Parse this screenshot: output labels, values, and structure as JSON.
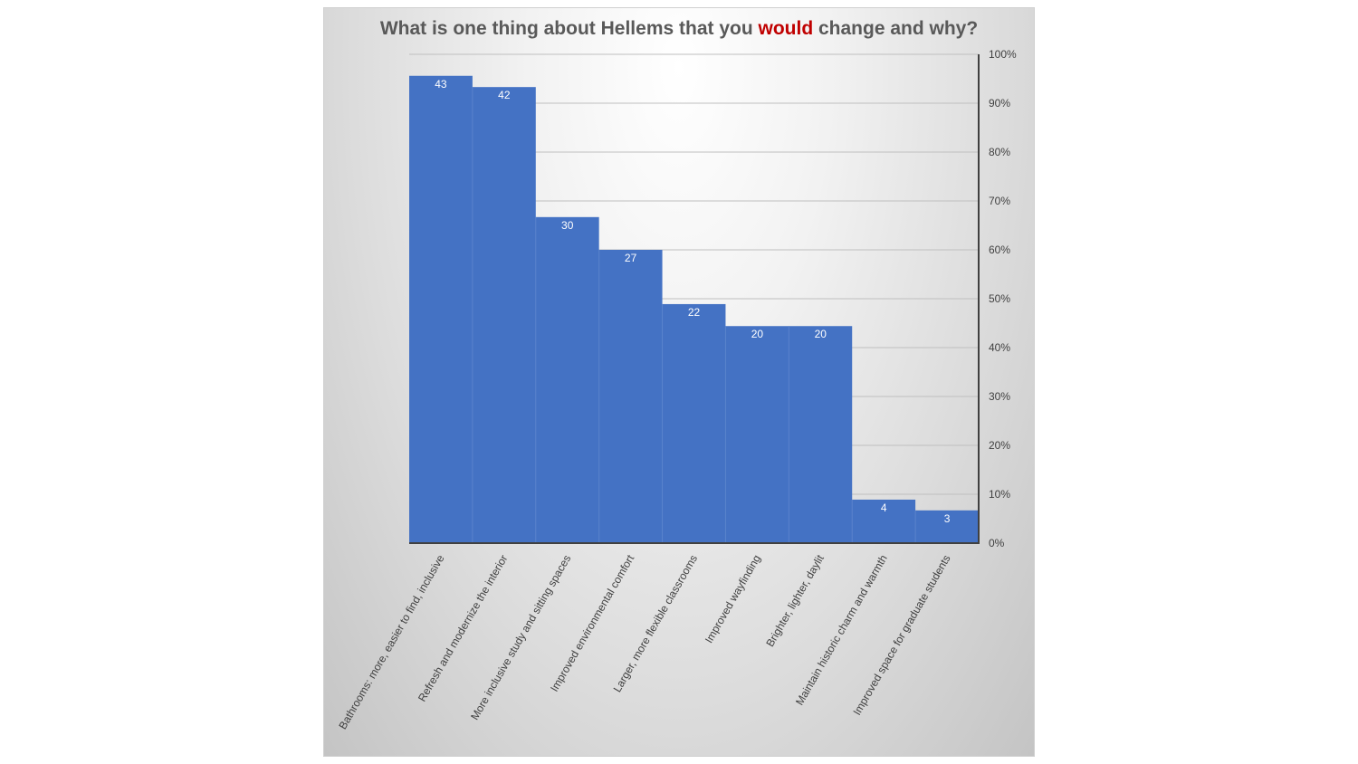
{
  "chart_data": {
    "type": "bar",
    "title_parts": [
      "What is one thing about Hellems that you ",
      "would",
      " change and why?"
    ],
    "categories": [
      "Bathrooms: more, easier to find, inclusive",
      "Refresh and modernize the interior",
      "More inclusive study and sitting spaces",
      "Improved environmental comfort",
      "Larger, more flexible classrooms",
      "Improved wayfinding",
      "Brighter, lighter, daylit",
      "Maintain historic charm and warmth",
      "Improved space for graduate students"
    ],
    "series": [
      {
        "data_labels": [
          43,
          42,
          30,
          27,
          22,
          20,
          20,
          4,
          3
        ],
        "values": [
          95.6,
          93.3,
          66.7,
          60.0,
          48.9,
          44.4,
          44.4,
          8.9,
          6.7
        ]
      }
    ],
    "y_axis": {
      "position": "right",
      "ylim": [
        0,
        100
      ],
      "ticks": [
        "0%",
        "10%",
        "20%",
        "30%",
        "40%",
        "50%",
        "60%",
        "70%",
        "80%",
        "90%",
        "100%"
      ]
    },
    "grid": true,
    "legend": "none",
    "colors": {
      "bar": "#4472c4",
      "bar_divider": "#5a83cc",
      "title": "#595959",
      "title_accent": "#c00000",
      "axis": "#404040",
      "grid": "#bfbfbf"
    }
  }
}
